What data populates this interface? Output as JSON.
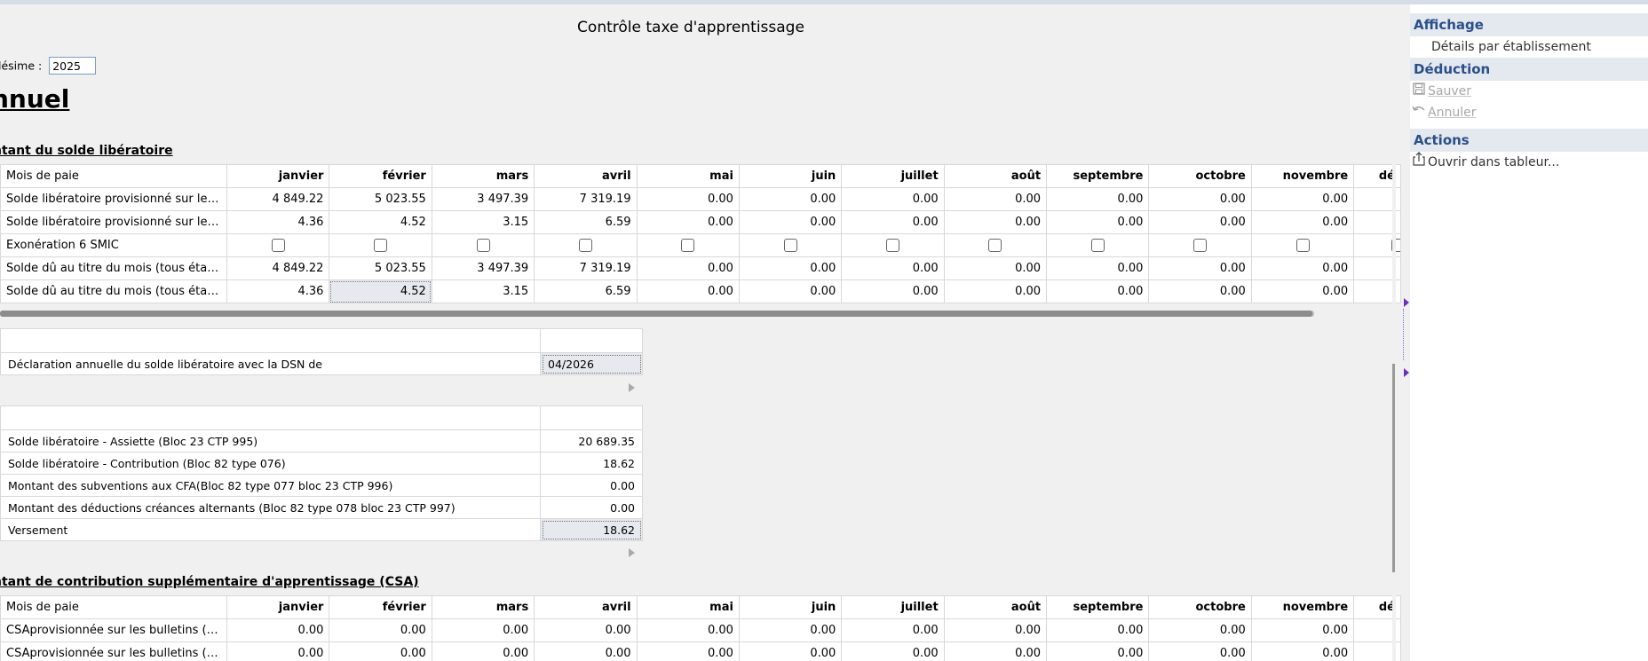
{
  "title": "Contrôle taxe d'apprentissage",
  "millesime": {
    "label": "lésime :",
    "value": "2025"
  },
  "heading": "nnuel",
  "solde": {
    "section_title": "ntant du solde libératoire",
    "headers": [
      "Mois de paie",
      "janvier",
      "février",
      "mars",
      "avril",
      "mai",
      "juin",
      "juillet",
      "août",
      "septembre",
      "octobre",
      "novembre",
      "dé"
    ],
    "rows": [
      {
        "label": "Solde libératoire provisionné sur les ...",
        "values": [
          "4 849.22",
          "5 023.55",
          "3 497.39",
          "7 319.19",
          "0.00",
          "0.00",
          "0.00",
          "0.00",
          "0.00",
          "0.00",
          "0.00",
          ""
        ]
      },
      {
        "label": "Solde libératoire provisionné sur les ...",
        "values": [
          "4.36",
          "4.52",
          "3.15",
          "6.59",
          "0.00",
          "0.00",
          "0.00",
          "0.00",
          "0.00",
          "0.00",
          "0.00",
          ""
        ]
      },
      {
        "label": "Exonération 6 SMIC",
        "checkbox": true
      },
      {
        "label": "Solde dû au titre du mois (tous établ...",
        "values": [
          "4 849.22",
          "5 023.55",
          "3 497.39",
          "7 319.19",
          "0.00",
          "0.00",
          "0.00",
          "0.00",
          "0.00",
          "0.00",
          "0.00",
          ""
        ]
      },
      {
        "label": "Solde dû au titre du mois (tous établ...",
        "values": [
          "4.36",
          "4.52",
          "3.15",
          "6.59",
          "0.00",
          "0.00",
          "0.00",
          "0.00",
          "0.00",
          "0.00",
          "0.00",
          ""
        ]
      }
    ]
  },
  "declaration": {
    "label": "Déclaration annuelle du solde libératoire avec la DSN de",
    "value": "04/2026"
  },
  "summary": [
    {
      "label": "Solde libératoire - Assiette (Bloc 23 CTP 995)",
      "value": "20 689.35"
    },
    {
      "label": "Solde libératoire - Contribution (Bloc 82 type 076)",
      "value": "18.62"
    },
    {
      "label": "Montant des subventions aux CFA(Bloc 82 type 077 bloc 23 CTP 996)",
      "value": "0.00"
    },
    {
      "label": "Montant des déductions créances alternants (Bloc 82 type 078 bloc 23 CTP 997)",
      "value": "0.00"
    },
    {
      "label": "Versement",
      "value": "18.62"
    }
  ],
  "csa": {
    "section_title": "ntant de contribution supplémentaire d'apprentissage (CSA)",
    "headers": [
      "Mois de paie",
      "janvier",
      "février",
      "mars",
      "avril",
      "mai",
      "juin",
      "juillet",
      "août",
      "septembre",
      "octobre",
      "novembre",
      "dé"
    ],
    "rows": [
      {
        "label": "CSAprovisionnée sur les bulletins (to...",
        "values": [
          "0.00",
          "0.00",
          "0.00",
          "0.00",
          "0.00",
          "0.00",
          "0.00",
          "0.00",
          "0.00",
          "0.00",
          "0.00",
          ""
        ]
      },
      {
        "label": "CSAprovisionnée sur les bulletins (to...",
        "values": [
          "0.00",
          "0.00",
          "0.00",
          "0.00",
          "0.00",
          "0.00",
          "0.00",
          "0.00",
          "0.00",
          "0.00",
          "0.00",
          ""
        ]
      }
    ]
  },
  "sidebar": {
    "affichage": {
      "title": "Affichage",
      "details": "Détails par établissement"
    },
    "deduction": {
      "title": "Déduction",
      "sauver": "Sauver",
      "annuler": "Annuler"
    },
    "actions": {
      "title": "Actions",
      "ouvrir": "Ouvrir dans tableur..."
    }
  }
}
